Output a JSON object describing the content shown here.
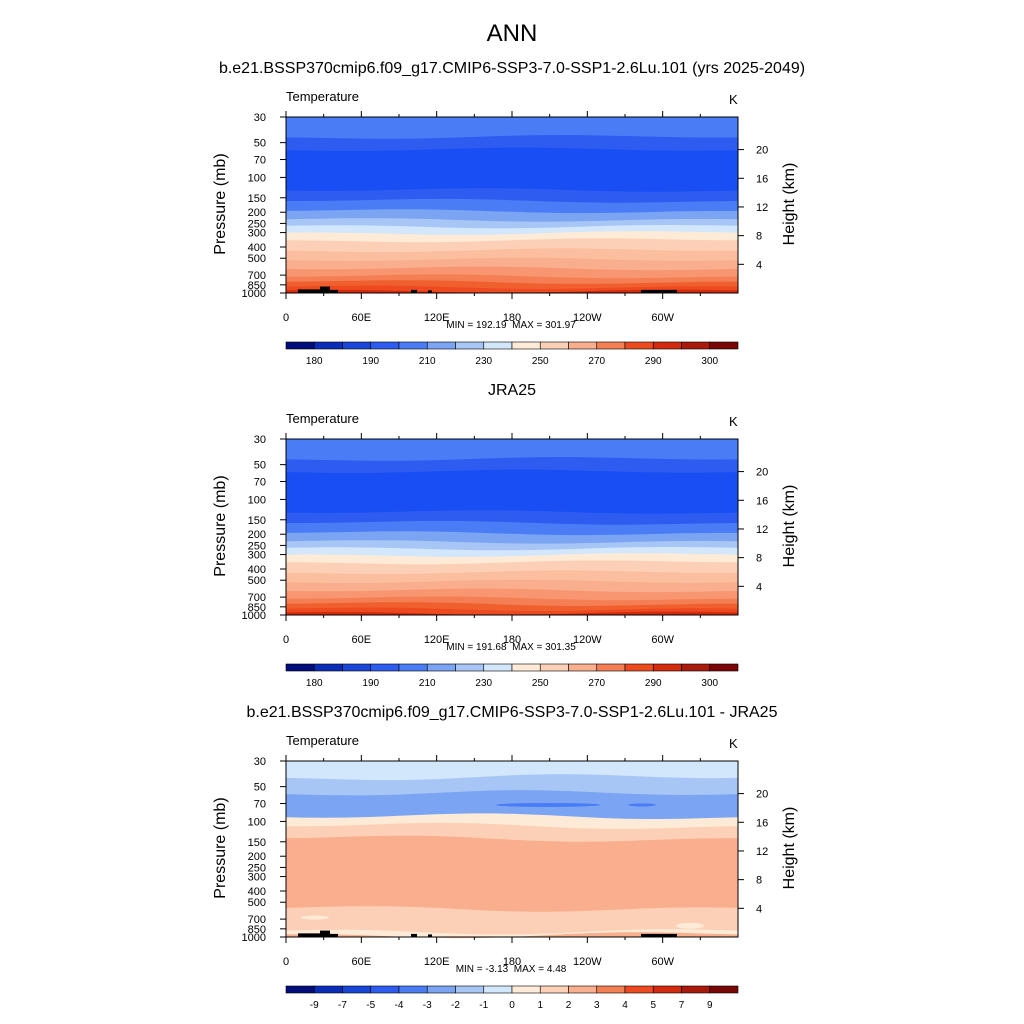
{
  "figure": {
    "main_title": "ANN"
  },
  "chart_data": [
    {
      "type": "heatmap",
      "title": "b.e21.BSSP370cmip6.f09_g17.CMIP6-SSP3-7.0-SSP1-2.6Lu.101 (yrs 2025-2049)",
      "field_label": "Temperature",
      "units": "K",
      "ylabel": "Pressure (mb)",
      "ylabel_right": "Height (km)",
      "xticks": [
        "0",
        "60E",
        "120E",
        "180",
        "120W",
        "60W"
      ],
      "yticks": [
        "30",
        "50",
        "70",
        "100",
        "150",
        "200",
        "250",
        "300",
        "400",
        "500",
        "700",
        "850",
        "1000"
      ],
      "height_ticks": [
        "20",
        "16",
        "12",
        "8",
        "4"
      ],
      "y_scale": "log",
      "ylim": [
        1000,
        30
      ],
      "min_label": "MIN = 192.19",
      "max_label": "MAX = 301.97",
      "min": 192.19,
      "max": 301.97,
      "colorbar_labels": [
        "180",
        "190",
        "210",
        "230",
        "250",
        "270",
        "290",
        "300"
      ],
      "colorbar_colors": [
        "#000d7a",
        "#0a2db8",
        "#1a46d8",
        "#2e5cf0",
        "#4a7df5",
        "#7ba4f2",
        "#a8c6f5",
        "#d2e6fc",
        "#fdebd8",
        "#fcd0b6",
        "#f9ae8d",
        "#f57f54",
        "#ee4a20",
        "#d42a0e",
        "#a81b0c",
        "#7a0707"
      ],
      "has_topography": true
    },
    {
      "type": "heatmap",
      "title": "JRA25",
      "field_label": "Temperature",
      "units": "K",
      "ylabel": "Pressure (mb)",
      "ylabel_right": "Height (km)",
      "xticks": [
        "0",
        "60E",
        "120E",
        "180",
        "120W",
        "60W"
      ],
      "yticks": [
        "30",
        "50",
        "70",
        "100",
        "150",
        "200",
        "250",
        "300",
        "400",
        "500",
        "700",
        "850",
        "1000"
      ],
      "height_ticks": [
        "20",
        "16",
        "12",
        "8",
        "4"
      ],
      "y_scale": "log",
      "ylim": [
        1000,
        30
      ],
      "min_label": "MIN = 191.68",
      "max_label": "MAX = 301.35",
      "min": 191.68,
      "max": 301.35,
      "colorbar_labels": [
        "180",
        "190",
        "210",
        "230",
        "250",
        "270",
        "290",
        "300"
      ],
      "colorbar_colors": [
        "#000d7a",
        "#0a2db8",
        "#1a46d8",
        "#2e5cf0",
        "#4a7df5",
        "#7ba4f2",
        "#a8c6f5",
        "#d2e6fc",
        "#fdebd8",
        "#fcd0b6",
        "#f9ae8d",
        "#f57f54",
        "#ee4a20",
        "#d42a0e",
        "#a81b0c",
        "#7a0707"
      ],
      "has_topography": false
    },
    {
      "type": "heatmap",
      "title": "b.e21.BSSP370cmip6.f09_g17.CMIP6-SSP3-7.0-SSP1-2.6Lu.101 - JRA25",
      "field_label": "Temperature",
      "units": "K",
      "ylabel": "Pressure (mb)",
      "ylabel_right": "Height (km)",
      "xticks": [
        "0",
        "60E",
        "120E",
        "180",
        "120W",
        "60W"
      ],
      "yticks": [
        "30",
        "50",
        "70",
        "100",
        "150",
        "200",
        "250",
        "300",
        "400",
        "500",
        "700",
        "850",
        "1000"
      ],
      "height_ticks": [
        "20",
        "16",
        "12",
        "8",
        "4"
      ],
      "y_scale": "log",
      "ylim": [
        1000,
        30
      ],
      "min_label": "MIN =  -3.13",
      "max_label": "MAX =   4.48",
      "min": -3.13,
      "max": 4.48,
      "colorbar_labels": [
        "-9",
        "-7",
        "-5",
        "-4",
        "-3",
        "-2",
        "-1",
        "0",
        "1",
        "2",
        "3",
        "4",
        "5",
        "7",
        "9"
      ],
      "colorbar_colors": [
        "#000d7a",
        "#0a2db8",
        "#1a46d8",
        "#2e5cf0",
        "#4a7df5",
        "#7ba4f2",
        "#a8c6f5",
        "#d2e6fc",
        "#fdebd8",
        "#fcd0b6",
        "#f9ae8d",
        "#f57f54",
        "#ee4a20",
        "#d42a0e",
        "#a81b0c",
        "#7a0707"
      ],
      "has_topography": true
    }
  ]
}
